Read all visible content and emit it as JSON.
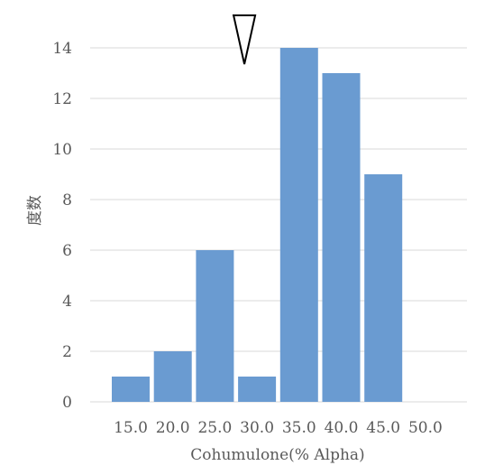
{
  "chart_data": {
    "type": "bar",
    "categories": [
      "15.0",
      "20.0",
      "25.0",
      "30.0",
      "35.0",
      "40.0",
      "45.0",
      "50.0"
    ],
    "values": [
      1,
      2,
      6,
      1,
      14,
      13,
      9,
      0
    ],
    "xlabel": "Cohumulone(% Alpha)",
    "ylabel": "度数",
    "ylim": [
      0,
      14
    ],
    "yticks": [
      0,
      2,
      4,
      6,
      8,
      10,
      12,
      14
    ],
    "grid": true,
    "legend": "none",
    "bar_color": "#6a9bd1",
    "grid_color": "#d9d9d9",
    "marker": {
      "shape": "triangle-down",
      "x_value": 28.5
    }
  }
}
